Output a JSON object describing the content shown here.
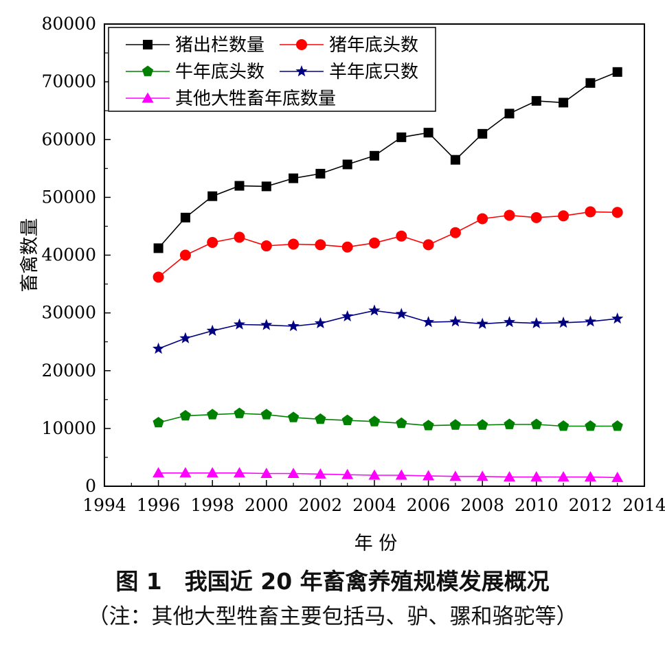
{
  "chart_data": {
    "type": "line",
    "xlabel": "年 份",
    "ylabel": "畜禽数量",
    "xlim": [
      1994,
      2014
    ],
    "ylim": [
      0,
      80000
    ],
    "xticks": [
      1994,
      1996,
      1998,
      2000,
      2002,
      2004,
      2006,
      2008,
      2010,
      2012,
      2014
    ],
    "yticks": [
      0,
      10000,
      20000,
      30000,
      40000,
      50000,
      60000,
      70000,
      80000
    ],
    "grid": false,
    "legend_position": "top-left",
    "x": [
      1996,
      1997,
      1998,
      1999,
      2000,
      2001,
      2002,
      2003,
      2004,
      2005,
      2006,
      2007,
      2008,
      2009,
      2010,
      2011,
      2012,
      2013
    ],
    "series": [
      {
        "name": "猪出栏数量",
        "color": "#000000",
        "marker": "square",
        "values": [
          41200,
          46500,
          50200,
          52000,
          51900,
          53300,
          54100,
          55700,
          57200,
          60400,
          61200,
          56500,
          61000,
          64500,
          66700,
          66400,
          69800,
          71700
        ]
      },
      {
        "name": "猪年底头数",
        "color": "#ff0000",
        "marker": "circle",
        "values": [
          36200,
          40000,
          42200,
          43100,
          41600,
          41900,
          41800,
          41400,
          42100,
          43300,
          41800,
          43900,
          46300,
          46900,
          46500,
          46800,
          47500,
          47400
        ]
      },
      {
        "name": "牛年底头数",
        "color": "#008000",
        "marker": "pentagon",
        "values": [
          11000,
          12200,
          12400,
          12600,
          12400,
          11900,
          11600,
          11400,
          11200,
          10900,
          10500,
          10600,
          10600,
          10700,
          10700,
          10400,
          10400,
          10400
        ]
      },
      {
        "name": "羊年底只数",
        "color": "#000080",
        "marker": "star",
        "values": [
          23800,
          25600,
          26900,
          28000,
          27900,
          27700,
          28200,
          29400,
          30400,
          29800,
          28400,
          28500,
          28100,
          28400,
          28200,
          28300,
          28500,
          29000
        ]
      },
      {
        "name": "其他大牲畜年底数量",
        "color": "#ff00ff",
        "marker": "triangle",
        "values": [
          2300,
          2300,
          2300,
          2300,
          2200,
          2200,
          2100,
          2000,
          1900,
          1900,
          1800,
          1700,
          1700,
          1600,
          1600,
          1600,
          1600,
          1500
        ]
      }
    ]
  },
  "caption": {
    "title": "图 1　我国近 20 年畜禽养殖规模发展概况",
    "note": "（注：其他大型牲畜主要包括马、驴、骡和骆驼等）"
  }
}
